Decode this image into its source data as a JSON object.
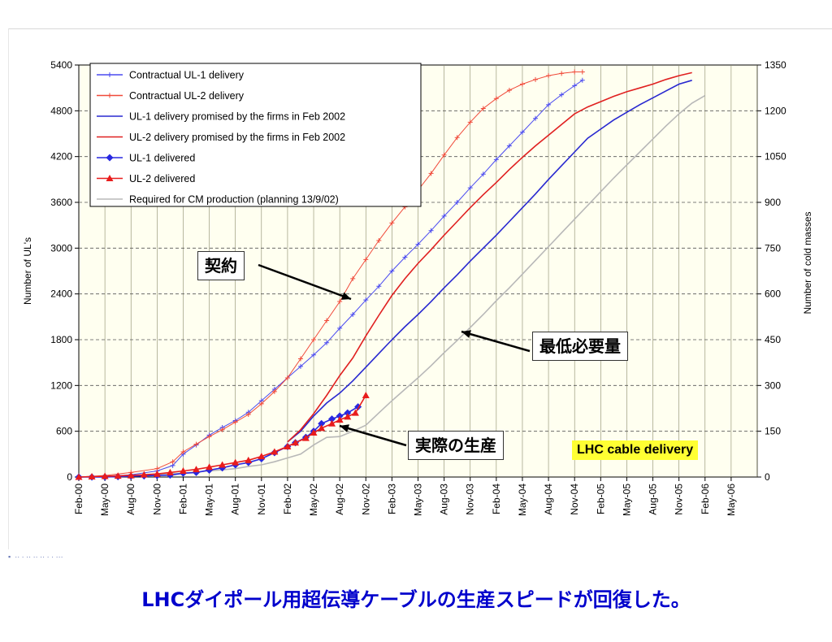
{
  "chart_data": {
    "type": "line",
    "xlabel": "",
    "ylabel": "Number of UL's",
    "y2label": "Number of cold masses",
    "ylim": [
      0,
      5400
    ],
    "y2lim": [
      0,
      1350
    ],
    "yticks": [
      "0",
      "600",
      "1200",
      "1800",
      "2400",
      "3000",
      "3600",
      "4200",
      "4800",
      "5400"
    ],
    "y2ticks": [
      "0",
      "150",
      "300",
      "450",
      "600",
      "750",
      "900",
      "1050",
      "1200",
      "1350"
    ],
    "categories": [
      "Feb-00",
      "May-00",
      "Aug-00",
      "Nov-00",
      "Feb-01",
      "May-01",
      "Aug-01",
      "Nov-01",
      "Feb-02",
      "May-02",
      "Aug-02",
      "Nov-02",
      "Feb-03",
      "May-03",
      "Aug-03",
      "Nov-03",
      "Feb-04",
      "May-04",
      "Aug-04",
      "Nov-04",
      "Feb-05",
      "May-05",
      "Aug-05",
      "Nov-05",
      "Feb-06",
      "May-06"
    ],
    "grid": true,
    "legend_position": "top-left",
    "series": [
      {
        "name": "Contractual UL-1 delivery",
        "color": "#4a4af0",
        "marker": "cross",
        "x": [
          0,
          1,
          2,
          3,
          3.6,
          4,
          4.5,
          5,
          5.5,
          6,
          6.5,
          7,
          7.5,
          8,
          8.5,
          9,
          9.5,
          10,
          10.5,
          11,
          11.5,
          12,
          12.5,
          13,
          13.5,
          14,
          14.5,
          15,
          15.5,
          16,
          16.5,
          17,
          17.5,
          18,
          18.5,
          19,
          19.3
        ],
        "y": [
          0,
          10,
          30,
          80,
          150,
          300,
          420,
          550,
          650,
          740,
          850,
          1000,
          1150,
          1300,
          1450,
          1600,
          1760,
          1950,
          2130,
          2320,
          2500,
          2700,
          2880,
          3050,
          3230,
          3420,
          3600,
          3790,
          3970,
          4160,
          4340,
          4520,
          4700,
          4880,
          5010,
          5130,
          5200
        ]
      },
      {
        "name": "Contractual UL-2 delivery",
        "color": "#f04a3a",
        "marker": "cross",
        "x": [
          0,
          1,
          2,
          3,
          3.6,
          4,
          4.5,
          5,
          5.5,
          6,
          6.5,
          7,
          7.5,
          8,
          8.5,
          9,
          9.5,
          10,
          10.5,
          11,
          11.5,
          12,
          12.5,
          13,
          13.5,
          14,
          14.5,
          15,
          15.5,
          16,
          16.5,
          17,
          17.5,
          18,
          18.5,
          19,
          19.3
        ],
        "y": [
          0,
          20,
          60,
          110,
          200,
          330,
          430,
          530,
          620,
          720,
          820,
          960,
          1120,
          1300,
          1550,
          1800,
          2050,
          2300,
          2600,
          2850,
          3100,
          3330,
          3540,
          3760,
          3980,
          4220,
          4450,
          4650,
          4830,
          4960,
          5070,
          5150,
          5210,
          5260,
          5290,
          5310,
          5310
        ]
      },
      {
        "name": "UL-1 delivery promised by the firms in Feb 2002",
        "color": "#2828d0",
        "marker": "none",
        "x": [
          8,
          8.5,
          9,
          9.5,
          10,
          10.5,
          11,
          11.5,
          12,
          12.5,
          13,
          13.5,
          14,
          14.5,
          15,
          15.5,
          16,
          16.5,
          17,
          17.5,
          18,
          18.5,
          19,
          19.5,
          20,
          20.5,
          21,
          21.5,
          22,
          22.5,
          23,
          23.5
        ],
        "y": [
          460,
          600,
          800,
          970,
          1100,
          1260,
          1440,
          1620,
          1800,
          1970,
          2130,
          2300,
          2480,
          2650,
          2830,
          3000,
          3170,
          3350,
          3530,
          3710,
          3900,
          4080,
          4260,
          4440,
          4560,
          4680,
          4780,
          4880,
          4970,
          5060,
          5150,
          5200
        ]
      },
      {
        "name": "UL-2 delivery promised by the firms in Feb 2002",
        "color": "#e02020",
        "marker": "none",
        "x": [
          8,
          8.5,
          9,
          9.5,
          10,
          10.5,
          11,
          11.5,
          12,
          12.5,
          13,
          13.5,
          14,
          14.5,
          15,
          15.5,
          16,
          16.5,
          17,
          17.5,
          18,
          18.5,
          19,
          19.5,
          20,
          20.5,
          21,
          21.5,
          22,
          22.5,
          23,
          23.5
        ],
        "y": [
          460,
          620,
          830,
          1070,
          1330,
          1560,
          1850,
          2120,
          2380,
          2600,
          2800,
          2980,
          3170,
          3350,
          3530,
          3700,
          3860,
          4030,
          4190,
          4340,
          4480,
          4620,
          4760,
          4850,
          4920,
          4990,
          5050,
          5100,
          5150,
          5210,
          5260,
          5300
        ]
      },
      {
        "name": "UL-1 delivered",
        "color": "#2828e0",
        "marker": "diamond",
        "x": [
          0,
          0.5,
          1,
          1.5,
          2,
          2.5,
          3,
          3.5,
          4,
          4.5,
          5,
          5.5,
          6,
          6.5,
          7,
          7.5,
          8,
          8.3,
          8.7,
          9,
          9.3,
          9.7,
          10,
          10.3,
          10.7
        ],
        "y": [
          0,
          0,
          0,
          5,
          10,
          15,
          20,
          25,
          50,
          60,
          90,
          120,
          160,
          190,
          240,
          320,
          400,
          450,
          520,
          600,
          700,
          760,
          800,
          840,
          920
        ]
      },
      {
        "name": "UL-2 delivered",
        "color": "#e81c1c",
        "marker": "triangle",
        "x": [
          0,
          0.5,
          1,
          1.5,
          2,
          2.5,
          3,
          3.5,
          4,
          4.5,
          5,
          5.5,
          6,
          6.5,
          7,
          7.5,
          8,
          8.3,
          8.7,
          9,
          9.3,
          9.7,
          10,
          10.3,
          10.6,
          11
        ],
        "y": [
          0,
          5,
          10,
          15,
          20,
          30,
          40,
          60,
          80,
          100,
          130,
          160,
          190,
          220,
          270,
          330,
          400,
          450,
          510,
          580,
          640,
          700,
          750,
          790,
          840,
          1070
        ]
      },
      {
        "name": "Required for CM production (planning 13/9/02)",
        "color": "#b8b8b8",
        "marker": "none",
        "x": [
          0,
          2,
          4,
          5,
          6,
          6.5,
          7,
          7.5,
          8,
          8.5,
          9,
          9.5,
          10,
          10.5,
          11,
          11.5,
          12,
          12.5,
          13,
          13.5,
          14,
          14.5,
          15,
          15.5,
          16,
          16.5,
          17,
          17.5,
          18,
          18.5,
          19,
          19.5,
          20,
          20.5,
          21,
          21.5,
          22,
          22.5,
          23,
          23.5,
          24
        ],
        "y": [
          0,
          20,
          50,
          80,
          110,
          140,
          160,
          200,
          250,
          300,
          420,
          520,
          530,
          600,
          680,
          840,
          1000,
          1150,
          1300,
          1460,
          1630,
          1790,
          1960,
          2130,
          2310,
          2480,
          2660,
          2840,
          3020,
          3200,
          3380,
          3560,
          3740,
          3920,
          4090,
          4260,
          4430,
          4600,
          4760,
          4900,
          5000
        ]
      }
    ]
  },
  "callouts": {
    "contract": "契約",
    "min_req": "最低必要量",
    "actual": "実際の生産"
  },
  "badge": "LHC cable delivery",
  "caption": "LHCダイポール用超伝導ケーブルの生産スピードが回復した。"
}
